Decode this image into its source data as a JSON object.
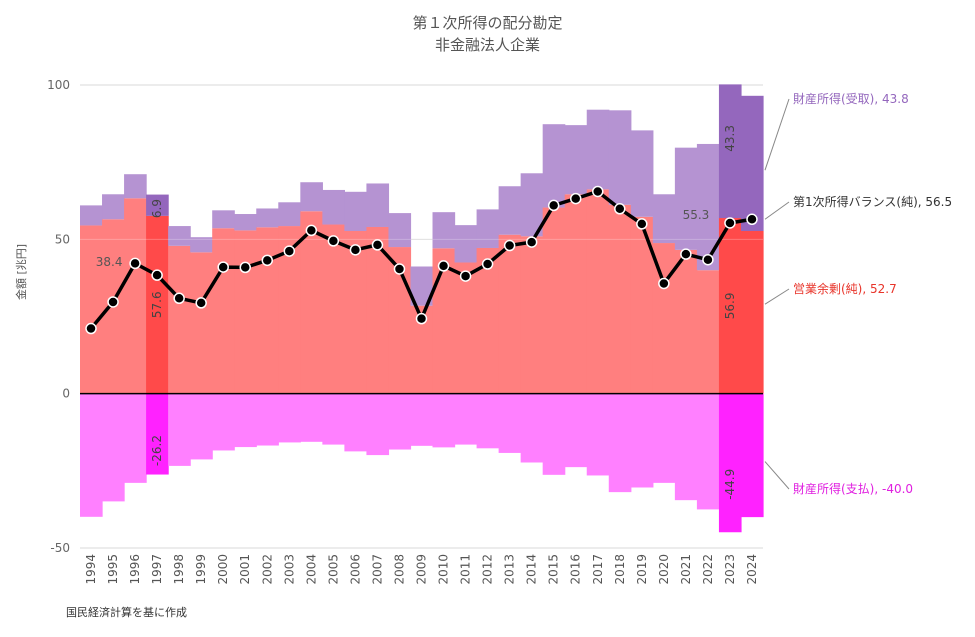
{
  "chart_data": {
    "type": "bar",
    "title": "第１次所得の配分勘定",
    "subtitle": "非金融法人企業",
    "ylabel": "金額 [兆円]",
    "note": "国民経済計算を基に作成",
    "ylim": [
      -50,
      100
    ],
    "yticks": [
      100,
      50,
      0,
      -50
    ],
    "categories": [
      "1994",
      "1995",
      "1996",
      "1997",
      "1998",
      "1999",
      "2000",
      "2001",
      "2002",
      "2003",
      "2004",
      "2005",
      "2006",
      "2007",
      "2008",
      "2009",
      "2010",
      "2011",
      "2012",
      "2013",
      "2014",
      "2015",
      "2016",
      "2017",
      "2018",
      "2019",
      "2020",
      "2021",
      "2022",
      "2023",
      "2024"
    ],
    "series": [
      {
        "name": "営業余剰(純)",
        "color": "#ff7f7f",
        "highlight": "#ff4a4a",
        "values": [
          54.5,
          56.5,
          63.3,
          57.6,
          47.9,
          45.8,
          53.6,
          52.9,
          53.9,
          54.3,
          59.1,
          54.8,
          52.7,
          54.0,
          47.5,
          28.5,
          47.1,
          42.5,
          47.2,
          51.5,
          51.0,
          60.3,
          64.6,
          66.2,
          61.2,
          57.3,
          48.8,
          46.6,
          40.0,
          56.9,
          52.7
        ]
      },
      {
        "name": "財産所得(受取)",
        "color": "#b593d2",
        "highlight": "#9467bd",
        "values": [
          6.5,
          8.1,
          7.8,
          6.9,
          6.4,
          4.9,
          5.8,
          5.3,
          6.1,
          7.7,
          9.4,
          11.2,
          12.7,
          14.1,
          11.0,
          12.7,
          11.7,
          12.1,
          12.5,
          15.7,
          20.4,
          27.0,
          22.4,
          25.8,
          30.6,
          28.0,
          15.8,
          33.1,
          40.9,
          43.3,
          43.8
        ]
      },
      {
        "name": "財産所得(支払)",
        "color": "#ff80ff",
        "highlight": "#ff22ff",
        "values": [
          -39.9,
          -34.9,
          -28.9,
          -26.2,
          -23.4,
          -21.3,
          -18.4,
          -17.3,
          -16.8,
          -15.8,
          -15.6,
          -16.5,
          -18.7,
          -19.9,
          -18.1,
          -16.9,
          -17.4,
          -16.5,
          -17.7,
          -19.2,
          -22.3,
          -26.3,
          -23.8,
          -26.5,
          -31.9,
          -30.4,
          -28.9,
          -34.5,
          -37.5,
          -44.9,
          -40.0
        ]
      },
      {
        "name": "第1次所得バランス(純)",
        "type": "line",
        "color": "#000000",
        "values": [
          21.1,
          29.7,
          42.2,
          38.4,
          30.9,
          29.4,
          41.0,
          40.9,
          43.2,
          46.2,
          52.9,
          49.5,
          46.6,
          48.2,
          40.4,
          24.3,
          41.4,
          38.1,
          42.0,
          48.0,
          49.1,
          61.0,
          63.2,
          65.5,
          59.9,
          55.0,
          35.7,
          45.2,
          43.4,
          55.3,
          56.5
        ]
      }
    ],
    "highlighted_years": [
      "1997",
      "2023",
      "2024"
    ],
    "data_labels": [
      {
        "text": "38.4",
        "series": "第1次所得バランス(純)",
        "year": "1997"
      },
      {
        "text": "57.6",
        "series": "営業余剰(純)",
        "year": "1997"
      },
      {
        "text": "6.9",
        "series": "財産所得(受取)",
        "year": "1997"
      },
      {
        "text": "-26.2",
        "series": "財産所得(支払)",
        "year": "1997"
      },
      {
        "text": "55.3",
        "series": "第1次所得バランス(純)",
        "year": "2023"
      },
      {
        "text": "56.9",
        "series": "営業余剰(純)",
        "year": "2023"
      },
      {
        "text": "43.3",
        "series": "財産所得(受取)",
        "year": "2023"
      },
      {
        "text": "-44.9",
        "series": "財産所得(支払)",
        "year": "2023"
      }
    ],
    "end_labels": [
      {
        "text": "財産所得(受取), 43.8",
        "series": "財産所得(受取)",
        "color": "#9467bd"
      },
      {
        "text": "第1次所得バランス(純), 56.5",
        "series": "第1次所得バランス(純)",
        "color": "#333333"
      },
      {
        "text": "営業余剰(純), 52.7",
        "series": "営業余剰(純)",
        "color": "#e8342a"
      },
      {
        "text": "財産所得(支払), -40.0",
        "series": "財産所得(支払)",
        "color": "#e020e0"
      }
    ],
    "grid": true,
    "legend": "none"
  }
}
